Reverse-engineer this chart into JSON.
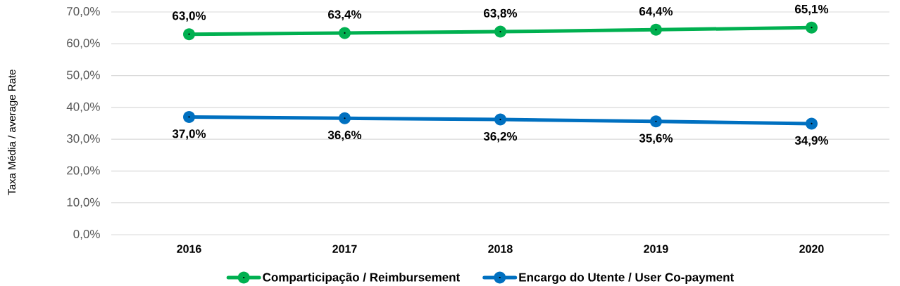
{
  "chart_data": {
    "type": "line",
    "ylabel": "Taxa Média / average Rate",
    "categories": [
      "2016",
      "2017",
      "2018",
      "2019",
      "2020"
    ],
    "series": [
      {
        "name": "Comparticipação / Reimbursement",
        "color": "#00b050",
        "values": [
          63.0,
          63.4,
          63.8,
          64.4,
          65.1
        ],
        "value_labels": [
          "63,0%",
          "63,4%",
          "63,8%",
          "64,4%",
          "65,1%"
        ]
      },
      {
        "name": "Encargo do Utente / User Co-payment",
        "color": "#0070c0",
        "values": [
          37.0,
          36.6,
          36.2,
          35.6,
          34.9
        ],
        "value_labels": [
          "37,0%",
          "36,6%",
          "36,2%",
          "35,6%",
          "34,9%"
        ]
      }
    ],
    "ylim": [
      0,
      70
    ],
    "yticks": [
      {
        "value": 0,
        "label": "0,0%"
      },
      {
        "value": 10,
        "label": "10,0%"
      },
      {
        "value": 20,
        "label": "20,0%"
      },
      {
        "value": 30,
        "label": "30,0%"
      },
      {
        "value": 40,
        "label": "40,0%"
      },
      {
        "value": 50,
        "label": "50,0%"
      },
      {
        "value": 60,
        "label": "60,0%"
      },
      {
        "value": 70,
        "label": "70,0%"
      }
    ],
    "grid": "y",
    "legend": "bottom",
    "marker": "circle"
  }
}
